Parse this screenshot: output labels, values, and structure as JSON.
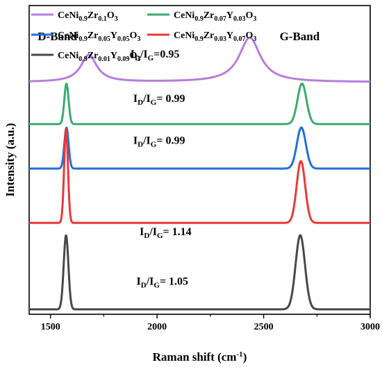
{
  "chart_data": {
    "type": "line",
    "xlabel": "Raman shift (cm⁻¹)",
    "xlabel_main": "Raman shift (cm",
    "xlabel_sup": "-1",
    "xlabel_close": ")",
    "ylabel": "Intensity (a.u.)",
    "xlim": [
      1400,
      3000
    ],
    "xticks": [
      1500,
      2000,
      2500,
      3000
    ],
    "y_ticks_shown": false,
    "grid": false,
    "legend_position": "top-left",
    "series": [
      {
        "name": "CeNi0.9Zr0.1O3",
        "label_parts": [
          [
            "CeNi",
            ""
          ],
          [
            "0.9",
            "sub"
          ],
          [
            "Zr",
            ""
          ],
          [
            "0.1",
            "sub"
          ],
          [
            "O",
            ""
          ],
          [
            "3",
            "sub"
          ]
        ],
        "color": "#b77ddb",
        "baseline": 4.7,
        "peaks": [
          {
            "center": 1680,
            "height": 0.55,
            "width": 45,
            "shape": "lorentz"
          },
          {
            "center": 2435,
            "height": 0.9,
            "width": 60,
            "shape": "lorentz"
          }
        ]
      },
      {
        "name": "CeNi0.9Zr0.07Y0.03O3",
        "label_parts": [
          [
            "CeNi",
            ""
          ],
          [
            "0.9",
            "sub"
          ],
          [
            "Zr",
            ""
          ],
          [
            "0.07",
            "sub"
          ],
          [
            "Y",
            ""
          ],
          [
            "0.03",
            "sub"
          ],
          [
            "O",
            ""
          ],
          [
            "3",
            "sub"
          ]
        ],
        "color": "#3aaa6e",
        "baseline": 3.85,
        "peaks": [
          {
            "center": 1575,
            "height": 0.82,
            "width": 10,
            "shape": "gauss"
          },
          {
            "center": 2680,
            "height": 0.82,
            "width": 21,
            "shape": "gauss"
          }
        ]
      },
      {
        "name": "CeNi0.9Zr0.05Y0.05O3",
        "label_parts": [
          [
            "CeNi",
            ""
          ],
          [
            "0.9",
            "sub"
          ],
          [
            "Zr",
            ""
          ],
          [
            "0.05",
            "sub"
          ],
          [
            "Y",
            ""
          ],
          [
            "0.05",
            "sub"
          ],
          [
            "O",
            ""
          ],
          [
            "3",
            "sub"
          ]
        ],
        "color": "#1f6fd6",
        "baseline": 2.95,
        "peaks": [
          {
            "center": 1575,
            "height": 0.83,
            "width": 10,
            "shape": "gauss"
          },
          {
            "center": 2677,
            "height": 0.83,
            "width": 21,
            "shape": "gauss"
          }
        ]
      },
      {
        "name": "CeNi0.9Zr0.03Y0.07O3",
        "label_parts": [
          [
            "CeNi",
            ""
          ],
          [
            "0.9",
            "sub"
          ],
          [
            "Zr",
            ""
          ],
          [
            "0.03",
            "sub"
          ],
          [
            "Y",
            ""
          ],
          [
            "0.07",
            "sub"
          ],
          [
            "O",
            ""
          ],
          [
            "3",
            "sub"
          ]
        ],
        "color": "#e8373a",
        "baseline": 1.85,
        "peaks": [
          {
            "center": 1573,
            "height": 1.9,
            "width": 9,
            "shape": "gauss"
          },
          {
            "center": 2675,
            "height": 1.25,
            "width": 20,
            "shape": "gauss"
          }
        ]
      },
      {
        "name": "CeNi0.9Zr0.01Y0.09O3",
        "label_parts": [
          [
            "CeNi",
            ""
          ],
          [
            "0.9",
            "sub"
          ],
          [
            "Zr",
            ""
          ],
          [
            "0.01",
            "sub"
          ],
          [
            "Y",
            ""
          ],
          [
            "0.09",
            "sub"
          ],
          [
            "O",
            ""
          ],
          [
            "3",
            "sub"
          ]
        ],
        "color": "#474747",
        "baseline": 0.1,
        "peaks": [
          {
            "center": 1573,
            "height": 1.5,
            "width": 11,
            "shape": "gauss"
          },
          {
            "center": 2672,
            "height": 1.5,
            "width": 22,
            "shape": "gauss"
          }
        ]
      }
    ],
    "y_range": [
      0,
      6.25
    ],
    "annotations": [
      {
        "text": "I_D/I_G=0.95",
        "main": "I",
        "sub1": "D",
        "mid": "/I",
        "sub2": "G",
        "tail": "=0.95",
        "x": 1990,
        "y": 5.2
      },
      {
        "text": "I_D/I_G= 0.99",
        "main": "I",
        "sub1": "D",
        "mid": "/I",
        "sub2": "G",
        "tail": "= 0.99",
        "x": 2010,
        "y": 4.3
      },
      {
        "text": "I_D/I_G= 0.99",
        "main": "I",
        "sub1": "D",
        "mid": "/I",
        "sub2": "G",
        "tail": "= 0.99",
        "x": 2010,
        "y": 3.45
      },
      {
        "text": "I_D/I_G= 1.14",
        "main": "I",
        "sub1": "D",
        "mid": "/I",
        "sub2": "G",
        "tail": "= 1.14",
        "x": 2040,
        "y": 1.6
      },
      {
        "text": "I_D/I_G= 1.05",
        "main": "I",
        "sub1": "D",
        "mid": "/I",
        "sub2": "G",
        "tail": "= 1.05",
        "x": 2025,
        "y": 0.6
      }
    ],
    "band_labels": [
      {
        "text": "D-Band",
        "x": 1440,
        "y": 5.55
      },
      {
        "text": "G-Band",
        "x": 2575,
        "y": 5.55
      }
    ]
  }
}
